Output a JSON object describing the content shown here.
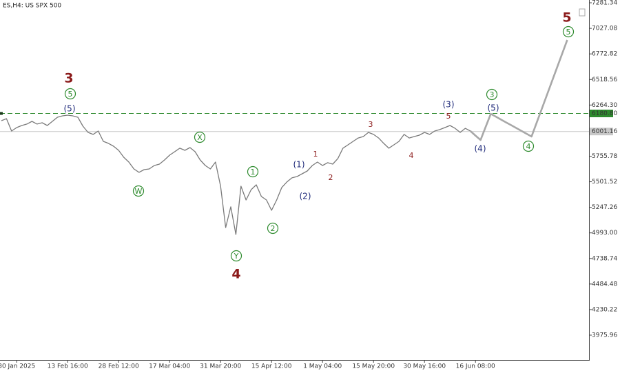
{
  "chart_data": {
    "type": "line",
    "title": "ES,H4: US SPX 500",
    "categories": [
      null,
      null,
      null,
      "30 Jan 2025",
      null,
      null,
      null,
      null,
      null,
      null,
      null,
      null,
      null,
      "13 Feb 16:00",
      null,
      null,
      null,
      null,
      null,
      null,
      null,
      null,
      null,
      "28 Feb 12:00",
      null,
      null,
      null,
      null,
      null,
      null,
      null,
      null,
      null,
      "17 Mar 04:00",
      null,
      null,
      null,
      null,
      null,
      null,
      null,
      null,
      null,
      "31 Mar 20:00",
      null,
      null,
      null,
      null,
      null,
      null,
      null,
      null,
      null,
      "15 Apr 12:00",
      null,
      null,
      null,
      null,
      null,
      null,
      null,
      null,
      null,
      "1 May 04:00",
      null,
      null,
      null,
      null,
      null,
      null,
      null,
      null,
      null,
      "15 May 20:00",
      null,
      null,
      null,
      null,
      null,
      null,
      null,
      null,
      null,
      "30 May 16:00",
      null,
      null,
      null,
      null,
      null,
      null,
      null,
      null,
      null,
      "16 Jun 08:00",
      null,
      null,
      null,
      null,
      null,
      null,
      null,
      null,
      null,
      null,
      null,
      null,
      null,
      null,
      null,
      null,
      null,
      null
    ],
    "series": [
      {
        "color": "#7a7a7a",
        "values": [
          6109,
          6129,
          6006,
          6040,
          6061,
          6075,
          6102,
          6075,
          6088,
          6061,
          6102,
          6143,
          6157,
          6164,
          6157,
          6143,
          6054,
          5992,
          5972,
          6006,
          5903,
          5883,
          5855,
          5814,
          5745,
          5697,
          5629,
          5595,
          5622,
          5629,
          5663,
          5677,
          5718,
          5766,
          5800,
          5835,
          5814,
          5841,
          5800,
          5718,
          5663,
          5629,
          5697,
          5457,
          5046,
          5252,
          4977,
          5457,
          5320,
          5423,
          5471,
          5355,
          5320,
          5217,
          5320,
          5444,
          5499,
          5540,
          5553,
          5581,
          5608,
          5663,
          5697,
          5663,
          5691,
          5677,
          5732,
          5835,
          5869,
          5903,
          5937,
          5951,
          5992,
          5972,
          5937,
          5883,
          5835,
          5869,
          5903,
          5972,
          5937,
          5951,
          5965,
          5992,
          5972,
          6006,
          6020,
          6040,
          6061,
          6033,
          5992,
          6033,
          6006,
          null,
          null,
          null,
          null,
          null,
          null,
          null,
          null,
          null,
          null,
          null,
          null,
          null,
          null,
          null,
          null,
          null,
          null,
          null
        ]
      },
      {
        "color": "#a8a8a8",
        "values": [
          null,
          null,
          null,
          null,
          null,
          null,
          null,
          null,
          null,
          null,
          null,
          null,
          null,
          null,
          null,
          null,
          null,
          null,
          null,
          null,
          null,
          null,
          null,
          null,
          null,
          null,
          null,
          null,
          null,
          null,
          null,
          null,
          null,
          null,
          null,
          null,
          null,
          null,
          null,
          null,
          null,
          null,
          null,
          null,
          null,
          null,
          null,
          null,
          null,
          null,
          null,
          null,
          null,
          null,
          null,
          null,
          null,
          null,
          null,
          null,
          null,
          null,
          null,
          null,
          null,
          null,
          null,
          null,
          null,
          null,
          null,
          null,
          null,
          null,
          null,
          null,
          null,
          null,
          null,
          null,
          null,
          null,
          null,
          null,
          null,
          null,
          null,
          null,
          null,
          null,
          null,
          null,
          6006,
          5961,
          5917,
          6047,
          6177,
          6149,
          6120,
          6092,
          6064,
          6036,
          6007,
          5979,
          5951,
          6088,
          6225,
          6362,
          6500,
          6637,
          6774,
          6911
        ]
      }
    ],
    "ylim": [
      3729,
      7309
    ],
    "yticks": [
      {
        "value": 7281.34,
        "label": "7281.34"
      },
      {
        "value": 7027.08,
        "label": "7027.08"
      },
      {
        "value": 6772.82,
        "label": "6772.82"
      },
      {
        "value": 6518.56,
        "label": "6518.56"
      },
      {
        "value": 6264.3,
        "label": "6264.30"
      },
      {
        "value": 5755.78,
        "label": "5755.78"
      },
      {
        "value": 5501.52,
        "label": "5501.52"
      },
      {
        "value": 5247.26,
        "label": "5247.26"
      },
      {
        "value": 4993,
        "label": "4993.00"
      },
      {
        "value": 4738.74,
        "label": "4738.74"
      },
      {
        "value": 4484.48,
        "label": "4484.48"
      },
      {
        "value": 4230.22,
        "label": "4230.22"
      },
      {
        "value": 3975.96,
        "label": "3975.96"
      }
    ],
    "hlines": [
      {
        "value": 6180.8,
        "label": "6180.80",
        "color": "#2e8b2e"
      },
      {
        "value": 6001.16,
        "label": "6001.16",
        "color": "#c8c8c8"
      }
    ],
    "annotations": [
      {
        "text": "3",
        "color": "#8b1a1a"
      },
      {
        "text": "5",
        "color": "#2e8b2e"
      },
      {
        "text": "(5)",
        "color": "#1f2a7a"
      },
      {
        "text": "W",
        "color": "#2e8b2e"
      },
      {
        "text": "X",
        "color": "#2e8b2e"
      },
      {
        "text": "1",
        "color": "#2e8b2e"
      },
      {
        "text": "(1)",
        "color": "#1f2a7a"
      },
      {
        "text": "(2)",
        "color": "#1f2a7a"
      },
      {
        "text": "2",
        "color": "#2e8b2e"
      },
      {
        "text": "Y",
        "color": "#2e8b2e"
      },
      {
        "text": "4",
        "color": "#8b1a1a"
      },
      {
        "text": "1",
        "color": "#8b1a1a"
      },
      {
        "text": "2",
        "color": "#8b1a1a"
      },
      {
        "text": "3",
        "color": "#8b1a1a"
      },
      {
        "text": "4",
        "color": "#8b1a1a"
      },
      {
        "text": "5",
        "color": "#8b1a1a"
      },
      {
        "text": "(3)",
        "color": "#1f2a7a"
      },
      {
        "text": "(4)",
        "color": "#1f2a7a"
      },
      {
        "text": "(5)",
        "color": "#1f2a7a"
      },
      {
        "text": "3",
        "color": "#2e8b2e"
      },
      {
        "text": "4",
        "color": "#2e8b2e"
      },
      {
        "text": "5",
        "color": "#8b1a1a"
      },
      {
        "text": "5",
        "color": "#2e8b2e"
      }
    ]
  }
}
